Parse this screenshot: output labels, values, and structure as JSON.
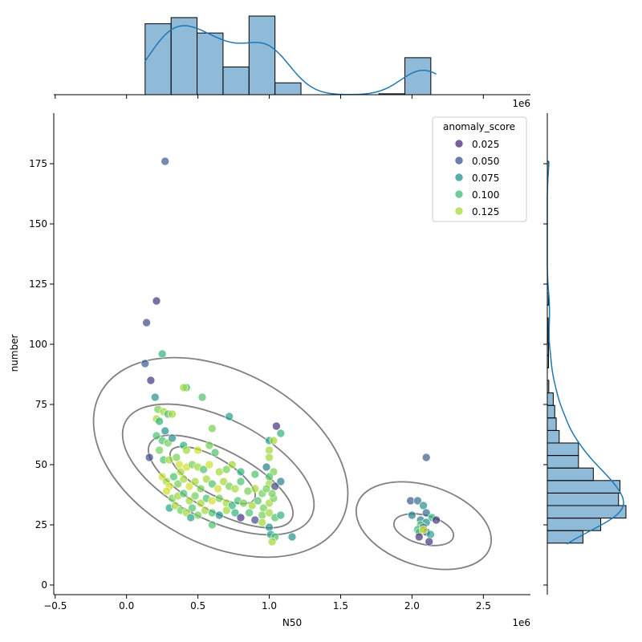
{
  "chart_data": [
    {
      "type": "scatter",
      "xlabel": "N50",
      "ylabel": "number",
      "x_offset_label": "1e6",
      "xlim": [
        -510000,
        2830000
      ],
      "ylim": [
        -4,
        196
      ],
      "x_ticks": [
        {
          "value": -500000,
          "label": "−0.5"
        },
        {
          "value": 0,
          "label": "0.0"
        },
        {
          "value": 500000,
          "label": "0.5"
        },
        {
          "value": 1000000,
          "label": "1.0"
        },
        {
          "value": 1500000,
          "label": "1.5"
        },
        {
          "value": 2000000,
          "label": "2.0"
        },
        {
          "value": 2500000,
          "label": "2.5"
        }
      ],
      "y_ticks": [
        {
          "value": 0,
          "label": "0"
        },
        {
          "value": 25,
          "label": "25"
        },
        {
          "value": 50,
          "label": "50"
        },
        {
          "value": 75,
          "label": "75"
        },
        {
          "value": 100,
          "label": "100"
        },
        {
          "value": 125,
          "label": "125"
        },
        {
          "value": 150,
          "label": "150"
        },
        {
          "value": 175,
          "label": "175"
        }
      ],
      "legend": {
        "title": "anomaly_score",
        "placement": "top-right",
        "entries": [
          {
            "label": "0.025",
            "color": "#472d7b"
          },
          {
            "label": "0.050",
            "color": "#3b528b"
          },
          {
            "label": "0.075",
            "color": "#21918c"
          },
          {
            "label": "0.100",
            "color": "#3dbc74"
          },
          {
            "label": "0.125",
            "color": "#a8db34"
          }
        ]
      },
      "color_range": [
        0.0,
        0.14
      ],
      "points": [
        [
          270000,
          176,
          0.04
        ],
        [
          210000,
          118,
          0.02
        ],
        [
          140000,
          109,
          0.03
        ],
        [
          250000,
          96,
          0.09
        ],
        [
          130000,
          92,
          0.04
        ],
        [
          170000,
          85,
          0.02
        ],
        [
          200000,
          78,
          0.07
        ],
        [
          420000,
          82,
          0.1
        ],
        [
          400000,
          82,
          0.12
        ],
        [
          530000,
          78,
          0.1
        ],
        [
          720000,
          70,
          0.08
        ],
        [
          1050000,
          66,
          0.02
        ],
        [
          210000,
          69,
          0.12
        ],
        [
          220000,
          73,
          0.11
        ],
        [
          260000,
          72,
          0.12
        ],
        [
          290000,
          71,
          0.1
        ],
        [
          320000,
          71,
          0.12
        ],
        [
          230000,
          68,
          0.09
        ],
        [
          270000,
          64,
          0.07
        ],
        [
          600000,
          65,
          0.11
        ],
        [
          1000000,
          60,
          0.08
        ],
        [
          1030000,
          60,
          0.12
        ],
        [
          1000000,
          56,
          0.12
        ],
        [
          1000000,
          53,
          0.12
        ],
        [
          210000,
          62,
          0.1
        ],
        [
          250000,
          60,
          0.1
        ],
        [
          290000,
          59,
          0.11
        ],
        [
          320000,
          61,
          0.07
        ],
        [
          400000,
          58,
          0.09
        ],
        [
          420000,
          56,
          0.12
        ],
        [
          500000,
          56,
          0.13
        ],
        [
          580000,
          58,
          0.11
        ],
        [
          620000,
          55,
          0.1
        ],
        [
          1080000,
          63,
          0.09
        ],
        [
          2100000,
          53,
          0.04
        ],
        [
          160000,
          53,
          0.03
        ],
        [
          230000,
          56,
          0.11
        ],
        [
          260000,
          52,
          0.1
        ],
        [
          300000,
          52,
          0.12
        ],
        [
          350000,
          53,
          0.11
        ],
        [
          370000,
          50,
          0.13
        ],
        [
          380000,
          47,
          0.12
        ],
        [
          420000,
          49,
          0.13
        ],
        [
          460000,
          50,
          0.11
        ],
        [
          500000,
          49,
          0.12
        ],
        [
          540000,
          48,
          0.1
        ],
        [
          580000,
          50,
          0.13
        ],
        [
          650000,
          47,
          0.12
        ],
        [
          700000,
          48,
          0.11
        ],
        [
          740000,
          50,
          0.12
        ],
        [
          800000,
          47,
          0.09
        ],
        [
          900000,
          46,
          0.1
        ],
        [
          980000,
          49,
          0.06
        ],
        [
          1030000,
          47,
          0.11
        ],
        [
          250000,
          45,
          0.13
        ],
        [
          280000,
          43,
          0.12
        ],
        [
          300000,
          41,
          0.13
        ],
        [
          330000,
          45,
          0.1
        ],
        [
          360000,
          42,
          0.11
        ],
        [
          400000,
          44,
          0.12
        ],
        [
          440000,
          41,
          0.13
        ],
        [
          480000,
          43,
          0.12
        ],
        [
          520000,
          40,
          0.11
        ],
        [
          560000,
          44,
          0.12
        ],
        [
          600000,
          42,
          0.1
        ],
        [
          640000,
          40,
          0.13
        ],
        [
          680000,
          43,
          0.12
        ],
        [
          720000,
          41,
          0.11
        ],
        [
          760000,
          40,
          0.12
        ],
        [
          800000,
          43,
          0.1
        ],
        [
          850000,
          39,
          0.11
        ],
        [
          900000,
          40,
          0.12
        ],
        [
          950000,
          38,
          0.11
        ],
        [
          1000000,
          42,
          0.12
        ],
        [
          1040000,
          41,
          0.03
        ],
        [
          1080000,
          43,
          0.06
        ],
        [
          1000000,
          45,
          0.1
        ],
        [
          280000,
          39,
          0.13
        ],
        [
          320000,
          36,
          0.11
        ],
        [
          360000,
          37,
          0.12
        ],
        [
          400000,
          38,
          0.1
        ],
        [
          440000,
          35,
          0.12
        ],
        [
          480000,
          37,
          0.11
        ],
        [
          520000,
          34,
          0.12
        ],
        [
          560000,
          36,
          0.1
        ],
        [
          600000,
          35,
          0.13
        ],
        [
          650000,
          36,
          0.11
        ],
        [
          700000,
          34,
          0.12
        ],
        [
          740000,
          33,
          0.09
        ],
        [
          780000,
          35,
          0.1
        ],
        [
          820000,
          34,
          0.11
        ],
        [
          880000,
          33,
          0.12
        ],
        [
          920000,
          35,
          0.1
        ],
        [
          960000,
          32,
          0.11
        ],
        [
          1000000,
          34,
          0.12
        ],
        [
          1030000,
          36,
          0.11
        ],
        [
          300000,
          32,
          0.08
        ],
        [
          340000,
          33,
          0.12
        ],
        [
          380000,
          31,
          0.11
        ],
        [
          420000,
          30,
          0.12
        ],
        [
          460000,
          32,
          0.1
        ],
        [
          500000,
          29,
          0.11
        ],
        [
          550000,
          31,
          0.12
        ],
        [
          600000,
          30,
          0.1
        ],
        [
          650000,
          29,
          0.07
        ],
        [
          700000,
          31,
          0.12
        ],
        [
          760000,
          30,
          0.09
        ],
        [
          800000,
          28,
          0.02
        ],
        [
          860000,
          30,
          0.1
        ],
        [
          900000,
          27,
          0.03
        ],
        [
          950000,
          29,
          0.11
        ],
        [
          1000000,
          30,
          0.12
        ],
        [
          1040000,
          28,
          0.1
        ],
        [
          1080000,
          29,
          0.09
        ],
        [
          450000,
          28,
          0.08
        ],
        [
          600000,
          25,
          0.1
        ],
        [
          950000,
          26,
          0.12
        ],
        [
          1000000,
          24,
          0.07
        ],
        [
          1010000,
          21,
          0.08
        ],
        [
          1040000,
          20,
          0.1
        ],
        [
          1020000,
          18,
          0.12
        ],
        [
          1160000,
          20,
          0.07
        ],
        [
          1020000,
          38,
          0.11
        ],
        [
          980000,
          40,
          0.11
        ],
        [
          1990000,
          35,
          0.04
        ],
        [
          2040000,
          35,
          0.05
        ],
        [
          2080000,
          33,
          0.07
        ],
        [
          2100000,
          30,
          0.05
        ],
        [
          2140000,
          28,
          0.09
        ],
        [
          2170000,
          27,
          0.02
        ],
        [
          2000000,
          29,
          0.06
        ],
        [
          2060000,
          27,
          0.06
        ],
        [
          2100000,
          26,
          0.07
        ],
        [
          2060000,
          25,
          0.1
        ],
        [
          2040000,
          23,
          0.09
        ],
        [
          2080000,
          24,
          0.05
        ],
        [
          2100000,
          22,
          0.03
        ],
        [
          2050000,
          22,
          0.1
        ],
        [
          2130000,
          21,
          0.08
        ],
        [
          2050000,
          20,
          0.02
        ],
        [
          2120000,
          18,
          0.02
        ],
        [
          2080000,
          23,
          0.13
        ]
      ]
    },
    {
      "type": "histogram",
      "orientation": "vertical",
      "variable": "N50",
      "bar_color": "#1f77b4",
      "kde": true,
      "bins": [
        {
          "start": 130000,
          "end": 312000,
          "count": 23
        },
        {
          "start": 312000,
          "end": 494000,
          "count": 25
        },
        {
          "start": 494000,
          "end": 676000,
          "count": 20
        },
        {
          "start": 676000,
          "end": 858000,
          "count": 9
        },
        {
          "start": 858000,
          "end": 1040000,
          "count": 25.5
        },
        {
          "start": 1040000,
          "end": 1222000,
          "count": 3.842
        },
        {
          "start": 1222000,
          "end": 1404000,
          "count": 0
        },
        {
          "start": 1404000,
          "end": 1586000,
          "count": 0
        },
        {
          "start": 1586000,
          "end": 1768000,
          "count": 0
        },
        {
          "start": 1768000,
          "end": 1950000,
          "count": 0.3
        },
        {
          "start": 1950000,
          "end": 2132000,
          "count": 12
        }
      ]
    },
    {
      "type": "histogram",
      "orientation": "horizontal",
      "variable": "number",
      "bar_color": "#1f77b4",
      "kde": true,
      "bins": [
        {
          "start": 17.4,
          "end": 22.6,
          "count": 12
        },
        {
          "start": 22.6,
          "end": 27.8,
          "count": 18
        },
        {
          "start": 27.8,
          "end": 33,
          "count": 26.5
        },
        {
          "start": 33,
          "end": 38.2,
          "count": 24
        },
        {
          "start": 38.2,
          "end": 43.4,
          "count": 24.5
        },
        {
          "start": 43.4,
          "end": 48.6,
          "count": 15.5
        },
        {
          "start": 48.6,
          "end": 53.8,
          "count": 10.5
        },
        {
          "start": 53.8,
          "end": 59,
          "count": 10.5
        },
        {
          "start": 59,
          "end": 64.2,
          "count": 4
        },
        {
          "start": 64.2,
          "end": 69.4,
          "count": 3
        },
        {
          "start": 69.4,
          "end": 74.6,
          "count": 2.5
        },
        {
          "start": 74.6,
          "end": 79.8,
          "count": 2
        },
        {
          "start": 79.8,
          "end": 85,
          "count": 0.5
        },
        {
          "start": 85,
          "end": 90.2,
          "count": 0
        },
        {
          "start": 90.2,
          "end": 95.4,
          "count": 0.4
        },
        {
          "start": 95.4,
          "end": 100.6,
          "count": 0.4
        },
        {
          "start": 100.6,
          "end": 105.8,
          "count": 0.3
        },
        {
          "start": 105.8,
          "end": 111,
          "count": 0.3
        },
        {
          "start": 111,
          "end": 116.2,
          "count": 0
        },
        {
          "start": 116.2,
          "end": 121.4,
          "count": 0.4
        },
        {
          "start": 121.4,
          "end": 170.8,
          "count": 0
        },
        {
          "start": 170.8,
          "end": 176,
          "count": 0.4
        }
      ]
    }
  ]
}
